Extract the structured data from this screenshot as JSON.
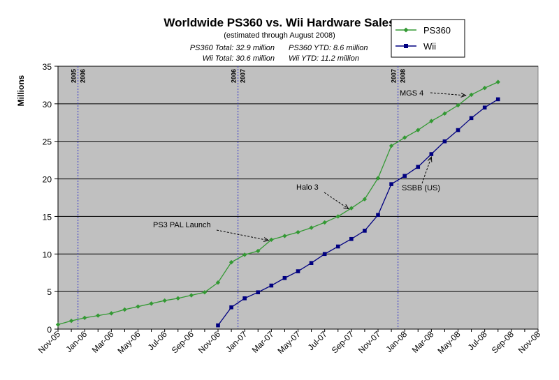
{
  "colors": {
    "plot_bg": "#c0c0c0",
    "ps360": "#339933",
    "wii": "#000080",
    "marker_year": "#3333cc"
  },
  "chart_data": {
    "type": "line",
    "title": "Worldwide PS360 vs. Wii Hardware Sales",
    "subtitle": "(estimated through August 2008)",
    "totals": {
      "ps360_total": "PS360 Total:  32.9 million",
      "ps360_ytd": "PS360 YTD:  8.6 million",
      "wii_total": "Wii Total:  30.6 million",
      "wii_ytd": "Wii YTD:  11.2 million"
    },
    "ylabel": "Millions",
    "xlabel": "",
    "ylim": [
      0,
      35
    ],
    "yticks": [
      0,
      5,
      10,
      15,
      20,
      25,
      30,
      35
    ],
    "xlim": [
      0,
      36
    ],
    "x_tick_labels": [
      "Nov-05",
      "Jan-06",
      "Mar-06",
      "May-06",
      "Jul-06",
      "Sep-06",
      "Nov-06",
      "Jan-07",
      "Mar-07",
      "May-07",
      "Jul-07",
      "Sep-07",
      "Nov-07",
      "Jan-08",
      "Mar-08",
      "May-08",
      "Jul-08",
      "Sep-08",
      "Nov-08"
    ],
    "grid": "horizontal",
    "legend_position": "top-right",
    "series": [
      {
        "name": "PS360",
        "color": "#339933",
        "marker": "diamond",
        "months": [
          "Nov-05",
          "Dec-05",
          "Jan-06",
          "Feb-06",
          "Mar-06",
          "Apr-06",
          "May-06",
          "Jun-06",
          "Jul-06",
          "Aug-06",
          "Sep-06",
          "Oct-06",
          "Nov-06",
          "Dec-06",
          "Jan-07",
          "Feb-07",
          "Mar-07",
          "Apr-07",
          "May-07",
          "Jun-07",
          "Jul-07",
          "Aug-07",
          "Sep-07",
          "Oct-07",
          "Nov-07",
          "Dec-07",
          "Jan-08",
          "Feb-08",
          "Mar-08",
          "Apr-08",
          "May-08",
          "Jun-08",
          "Jul-08",
          "Aug-08"
        ],
        "values": [
          0.6,
          1.1,
          1.5,
          1.8,
          2.1,
          2.6,
          3.0,
          3.4,
          3.8,
          4.1,
          4.5,
          4.9,
          6.2,
          8.9,
          9.9,
          10.4,
          11.9,
          12.4,
          12.9,
          13.5,
          14.2,
          15.0,
          16.1,
          17.3,
          20.1,
          24.4,
          25.5,
          26.5,
          27.7,
          28.7,
          29.8,
          31.2,
          32.1,
          32.9
        ]
      },
      {
        "name": "Wii",
        "color": "#000080",
        "marker": "square",
        "months": [
          "Nov-06",
          "Dec-06",
          "Jan-07",
          "Feb-07",
          "Mar-07",
          "Apr-07",
          "May-07",
          "Jun-07",
          "Jul-07",
          "Aug-07",
          "Sep-07",
          "Oct-07",
          "Nov-07",
          "Dec-07",
          "Jan-08",
          "Feb-08",
          "Mar-08",
          "Apr-08",
          "May-08",
          "Jun-08",
          "Jul-08",
          "Aug-08"
        ],
        "values": [
          0.5,
          2.9,
          4.1,
          4.9,
          5.8,
          6.8,
          7.7,
          8.8,
          10.0,
          11.0,
          12.0,
          13.1,
          15.2,
          19.3,
          20.4,
          21.6,
          23.3,
          25.0,
          26.5,
          28.1,
          29.5,
          30.6
        ]
      }
    ],
    "year_markers": [
      {
        "left": "2005",
        "right": "2006",
        "x": 1.5
      },
      {
        "left": "2006",
        "right": "2007",
        "x": 13.5
      },
      {
        "left": "2007",
        "right": "2008",
        "x": 25.5
      }
    ],
    "annotations": [
      {
        "text": "PS3 PAL Launch",
        "target_month": 16,
        "target_value": 11.9
      },
      {
        "text": "Halo 3",
        "target_month": 22,
        "target_value": 16.1
      },
      {
        "text": "SSBB (US)",
        "target_month": 28,
        "target_value": 23.3
      },
      {
        "text": "MGS 4",
        "target_month": 31,
        "target_value": 31.2
      }
    ]
  }
}
